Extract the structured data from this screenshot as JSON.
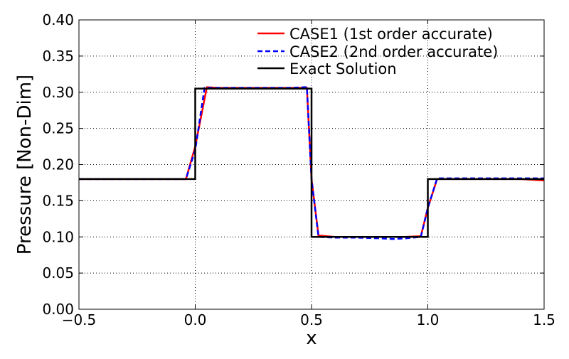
{
  "chart_data": {
    "type": "line",
    "xlabel": "x",
    "ylabel": "Pressure [Non-Dim]",
    "xlim": [
      -0.5,
      1.5
    ],
    "ylim": [
      0.0,
      0.4
    ],
    "xticks": [
      -0.5,
      0.0,
      0.5,
      1.0,
      1.5
    ],
    "xtick_labels": [
      "−0.5",
      "0.0",
      "0.5",
      "1.0",
      "1.5"
    ],
    "yticks": [
      0.0,
      0.05,
      0.1,
      0.15,
      0.2,
      0.25,
      0.3,
      0.35,
      0.4
    ],
    "ytick_labels": [
      "0.00",
      "0.05",
      "0.10",
      "0.15",
      "0.20",
      "0.25",
      "0.30",
      "0.35",
      "0.40"
    ],
    "grid": true,
    "legend_position": "top-right",
    "series": [
      {
        "name": "CASE1 (1st order accurate)",
        "color": "#ff0000",
        "style": "solid",
        "x": [
          -0.5,
          -0.04,
          0.0,
          0.05,
          0.1,
          0.2,
          0.3,
          0.4,
          0.48,
          0.5,
          0.53,
          0.6,
          0.7,
          0.8,
          0.9,
          0.97,
          1.0,
          1.04,
          1.1,
          1.2,
          1.3,
          1.4,
          1.5
        ],
        "y": [
          0.18,
          0.18,
          0.225,
          0.307,
          0.306,
          0.306,
          0.306,
          0.306,
          0.306,
          0.18,
          0.102,
          0.1,
          0.1,
          0.1,
          0.1,
          0.101,
          0.14,
          0.18,
          0.18,
          0.18,
          0.18,
          0.18,
          0.178
        ]
      },
      {
        "name": "CASE2 (2nd order accurate)",
        "color": "#0000ff",
        "style": "dashed",
        "x": [
          -0.5,
          -0.04,
          0.0,
          0.04,
          0.1,
          0.2,
          0.3,
          0.4,
          0.48,
          0.5,
          0.53,
          0.6,
          0.7,
          0.8,
          0.85,
          0.9,
          0.97,
          1.0,
          1.04,
          1.1,
          1.2,
          1.3,
          1.4,
          1.5
        ],
        "y": [
          0.18,
          0.18,
          0.22,
          0.306,
          0.306,
          0.306,
          0.306,
          0.306,
          0.307,
          0.18,
          0.1,
          0.099,
          0.099,
          0.098,
          0.097,
          0.098,
          0.1,
          0.14,
          0.181,
          0.181,
          0.181,
          0.181,
          0.181,
          0.181
        ]
      },
      {
        "name": "Exact Solution",
        "color": "#000000",
        "style": "solid",
        "x": [
          -0.5,
          0.0,
          0.0,
          0.5,
          0.5,
          1.0,
          1.0,
          1.5
        ],
        "y": [
          0.18,
          0.18,
          0.305,
          0.305,
          0.1,
          0.1,
          0.18,
          0.18
        ]
      }
    ]
  }
}
